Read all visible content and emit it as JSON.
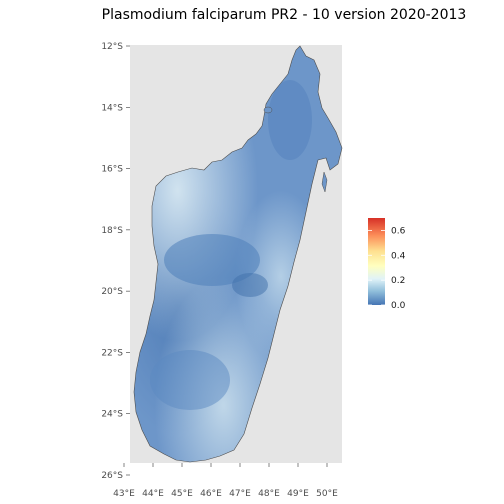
{
  "title": "Plasmodium falciparum PR2 - 10 version 2020-2013",
  "y_ticks": [
    {
      "label": "12°S",
      "lat": -12
    },
    {
      "label": "14°S",
      "lat": -14
    },
    {
      "label": "16°S",
      "lat": -16
    },
    {
      "label": "18°S",
      "lat": -18
    },
    {
      "label": "20°S",
      "lat": -20
    },
    {
      "label": "22°S",
      "lat": -22
    },
    {
      "label": "24°S",
      "lat": -24
    },
    {
      "label": "26°S",
      "lat": -26
    }
  ],
  "x_ticks": [
    {
      "label": "43°E",
      "lon": 43
    },
    {
      "label": "44°E",
      "lon": 44
    },
    {
      "label": "45°E",
      "lon": 45
    },
    {
      "label": "46°E",
      "lon": 46
    },
    {
      "label": "47°E",
      "lon": 47
    },
    {
      "label": "48°E",
      "lon": 48
    },
    {
      "label": "49°E",
      "lon": 49
    },
    {
      "label": "50°E",
      "lon": 50
    }
  ],
  "legend": {
    "ticks": [
      {
        "label": "0.6",
        "value": 0.6
      },
      {
        "label": "0.4",
        "value": 0.4
      },
      {
        "label": "0.2",
        "value": 0.2
      },
      {
        "label": "0.0",
        "value": 0.0
      }
    ],
    "min": 0.0,
    "max": 0.7,
    "colors": [
      "#4575b4",
      "#91bfdb",
      "#e0f3f8",
      "#ffffbf",
      "#fee090",
      "#fc8d59",
      "#d73027"
    ]
  },
  "colors": {
    "panel_background": "#e5e5e5",
    "land_dark": "#5a86bd",
    "land_mid": "#7ea4cf",
    "land_light": "#c4dcea",
    "coast": "#4d4d4d"
  }
}
